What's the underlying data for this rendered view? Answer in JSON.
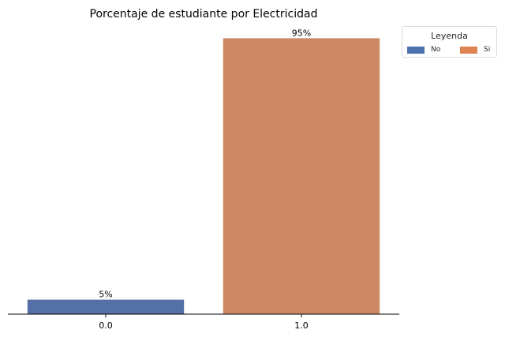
{
  "chart_data": {
    "type": "bar",
    "title": "Porcentaje de estudiante por Electricidad",
    "xlabel": "",
    "ylabel": "",
    "categories": [
      "0.0",
      "1.0"
    ],
    "values": [
      5,
      95
    ],
    "value_labels": [
      "5%",
      "95%"
    ],
    "bar_colors": [
      "#5470a6",
      "#cc8963"
    ],
    "ylim": [
      0,
      100
    ],
    "grid": false,
    "legend": {
      "title": "Leyenda",
      "placement": "top-right, outside plot",
      "entries": [
        {
          "label": "No",
          "color": "#4c72b0"
        },
        {
          "label": "Si",
          "color": "#dd8452"
        }
      ]
    }
  }
}
